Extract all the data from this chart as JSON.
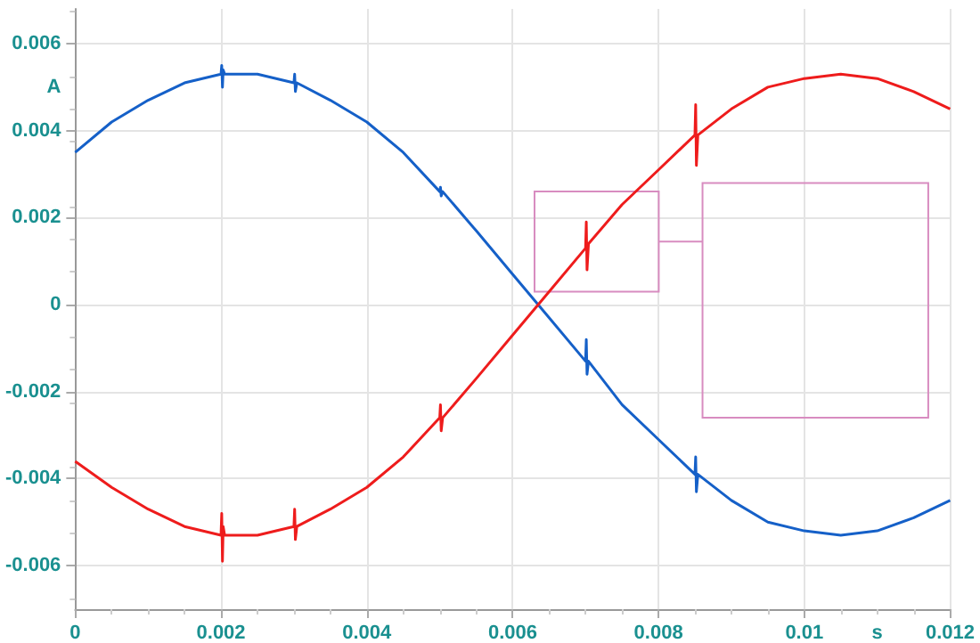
{
  "chart_data": {
    "type": "line",
    "xlabel": "s",
    "ylabel": "A",
    "xlim": [
      0,
      0.012
    ],
    "xticks": [
      0,
      0.002,
      0.004,
      0.006,
      0.008,
      0.01,
      0.012
    ],
    "ylim": [
      -0.007,
      0.0068
    ],
    "yticks": [
      -0.006,
      -0.004,
      -0.002,
      0,
      0.002,
      0.004,
      0.006
    ],
    "grid": true,
    "marker": "none",
    "line_style": "solid",
    "series": [
      {
        "color": "#1560c8",
        "x": [
          0,
          0.0005,
          0.001,
          0.0015,
          0.002,
          0.00201,
          0.00202,
          0.00203,
          0.00205,
          0.0025,
          0.003,
          0.00301,
          0.00302,
          0.00304,
          0.0035,
          0.004,
          0.0045,
          0.005,
          0.00501,
          0.00502,
          0.00504,
          0.0055,
          0.006,
          0.0065,
          0.007,
          0.00701,
          0.00702,
          0.00704,
          0.0075,
          0.008,
          0.0085,
          0.00851,
          0.00852,
          0.00854,
          0.009,
          0.0095,
          0.01,
          0.0105,
          0.011,
          0.0115,
          0.012
        ],
        "values": [
          0.0035,
          0.0042,
          0.0047,
          0.0051,
          0.0053,
          0.0055,
          0.005,
          0.0054,
          0.0053,
          0.0053,
          0.0051,
          0.0053,
          0.0049,
          0.0051,
          0.0047,
          0.0042,
          0.0035,
          0.0026,
          0.0027,
          0.0025,
          0.0026,
          0.0017,
          0.0007,
          -0.0003,
          -0.0013,
          -0.0008,
          -0.0016,
          -0.0013,
          -0.0023,
          -0.0031,
          -0.0039,
          -0.0035,
          -0.0043,
          -0.0039,
          -0.0045,
          -0.005,
          -0.0052,
          -0.0053,
          -0.0052,
          -0.0049,
          -0.0045
        ]
      },
      {
        "color": "#ee1c1c",
        "x": [
          0,
          0.0005,
          0.001,
          0.0015,
          0.002,
          0.00201,
          0.00202,
          0.00203,
          0.00205,
          0.0025,
          0.003,
          0.00301,
          0.00302,
          0.00304,
          0.0035,
          0.004,
          0.0045,
          0.005,
          0.00501,
          0.00502,
          0.00504,
          0.0055,
          0.006,
          0.0065,
          0.007,
          0.00701,
          0.00702,
          0.00704,
          0.0075,
          0.008,
          0.0085,
          0.00851,
          0.00852,
          0.00854,
          0.009,
          0.0095,
          0.01,
          0.0105,
          0.011,
          0.0115,
          0.012
        ],
        "values": [
          -0.0036,
          -0.0042,
          -0.0047,
          -0.0051,
          -0.0053,
          -0.0048,
          -0.0059,
          -0.0051,
          -0.0053,
          -0.0053,
          -0.0051,
          -0.0047,
          -0.0054,
          -0.0051,
          -0.0047,
          -0.0042,
          -0.0035,
          -0.0026,
          -0.0023,
          -0.0029,
          -0.0026,
          -0.0017,
          -0.0007,
          0.0003,
          0.0013,
          0.0019,
          0.0008,
          0.0014,
          0.0023,
          0.0031,
          0.0039,
          0.0046,
          0.0032,
          0.0039,
          0.0045,
          0.005,
          0.0052,
          0.0053,
          0.0052,
          0.0049,
          0.0045
        ]
      }
    ]
  }
}
